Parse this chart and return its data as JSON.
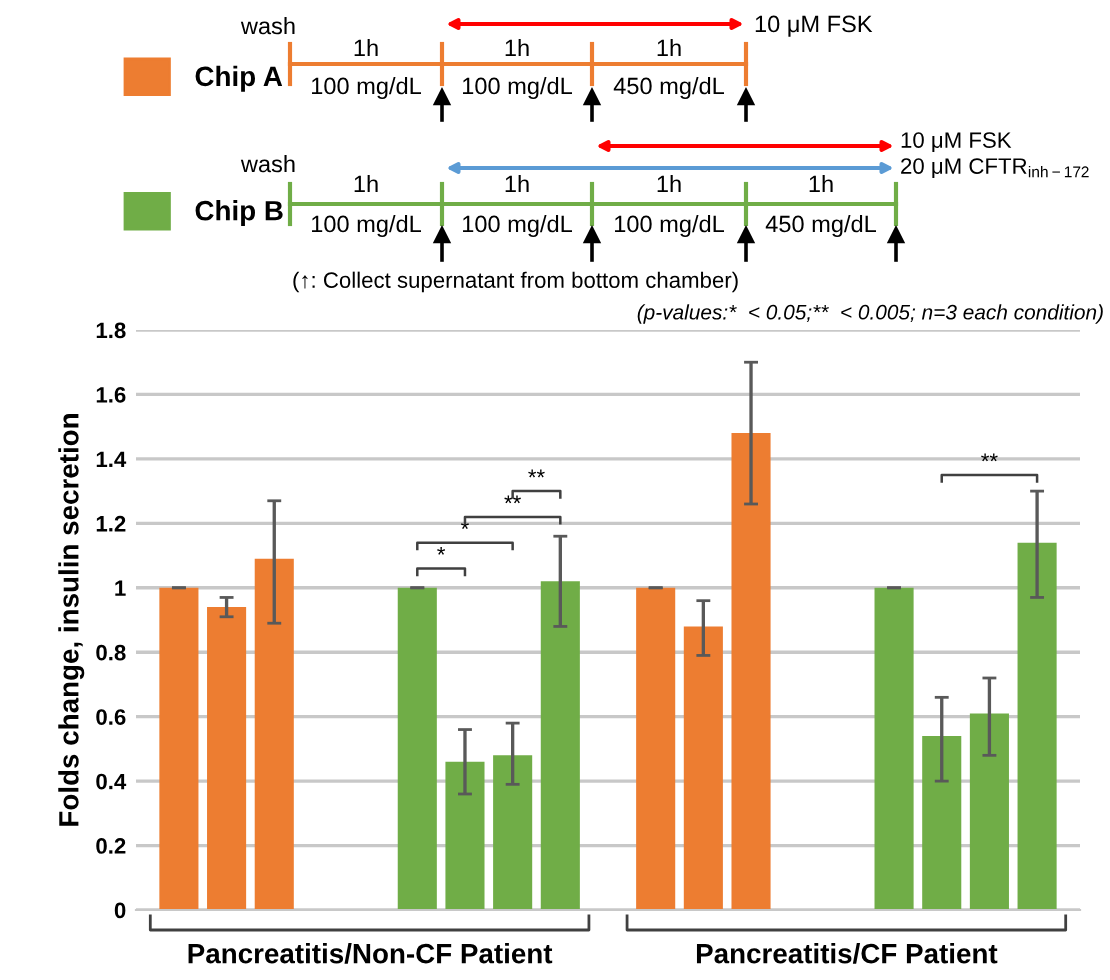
{
  "chart_data": {
    "type": "bar",
    "ylabel": "Folds change, insulin secretion",
    "categories": [
      null,
      null,
      null,
      null,
      null,
      null,
      null,
      null,
      null,
      null,
      null,
      null,
      null,
      null,
      null,
      null,
      null,
      null,
      null
    ],
    "series": [
      {
        "name": "Chip A",
        "color": "#ed7d31",
        "values": [
          1.0,
          0.94,
          1.09,
          null,
          null,
          null,
          null,
          null,
          null,
          null,
          1.0,
          0.88,
          1.48,
          null,
          null,
          null,
          null,
          null,
          null
        ],
        "errors": [
          0,
          [
            0.91,
            0.97
          ],
          [
            0.89,
            1.27
          ],
          null,
          null,
          null,
          null,
          null,
          null,
          null,
          0,
          [
            0.79,
            0.96
          ],
          [
            1.26,
            1.7
          ],
          null,
          null,
          null,
          null,
          null,
          null
        ]
      },
      {
        "name": "Chip B",
        "color": "#70ad47",
        "values": [
          null,
          null,
          null,
          null,
          null,
          1.0,
          0.46,
          0.48,
          1.02,
          null,
          null,
          null,
          null,
          null,
          null,
          1.0,
          0.54,
          0.61,
          1.14
        ],
        "errors": [
          null,
          null,
          null,
          null,
          null,
          0,
          [
            0.36,
            0.56
          ],
          [
            0.39,
            0.58
          ],
          [
            0.88,
            1.16
          ],
          null,
          null,
          null,
          null,
          null,
          null,
          0,
          [
            0.4,
            0.66
          ],
          [
            0.48,
            0.72
          ],
          [
            0.97,
            1.3
          ]
        ]
      }
    ],
    "ylim": [
      0,
      1.8
    ],
    "yticks": [
      0,
      0.2,
      0.4,
      0.6,
      0.8,
      1,
      1.2,
      1.4,
      1.6,
      1.8
    ],
    "grid": "y",
    "legend": "top left",
    "annotations": [
      "wash",
      "1h",
      "1h",
      "1h",
      "100 mg/dL",
      "100 mg/dL",
      "450 mg/dL",
      "10 μM FSK",
      "wash",
      "1h",
      "1h",
      "1h",
      "1h",
      "100 mg/dL",
      "100 mg/dL",
      "100 mg/dL",
      "450 mg/dL",
      "10 μM FSK",
      "20 μM CFTR$_{inh−172}$",
      "(↑: Collect supernatant from bottom chamber)",
      "(p-values:*  < 0.05;**  < 0.005; n=3 each condition)",
      "Pancreatitis/Non-CF Patient",
      "Pancreatitis/CF Patient",
      "*",
      "*",
      "**",
      "**",
      "**"
    ]
  }
}
